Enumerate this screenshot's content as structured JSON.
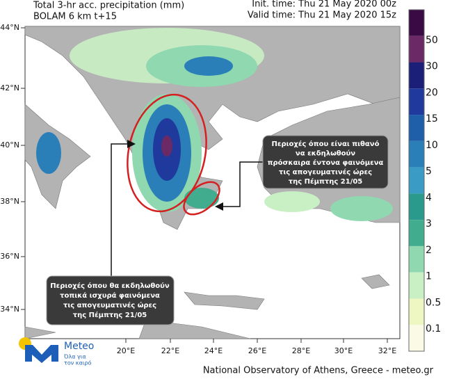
{
  "header": {
    "title": "Total 3-hr acc. precipitation (mm)",
    "model": "BOLAM 6 km t+15",
    "init_time": "Init. time: Thu 21 May 2020 00z",
    "valid_time": "Valid time: Thu 21 May 2020 15z"
  },
  "map": {
    "lat_labels": [
      "44°N",
      "42°N",
      "40°N",
      "38°N",
      "36°N",
      "34°N"
    ],
    "lon_labels": [
      "20°E",
      "22°E",
      "24°E",
      "26°E",
      "28°E",
      "30°E",
      "32°E"
    ]
  },
  "legend": {
    "labels": [
      "50",
      "30",
      "20",
      "15",
      "10",
      "5",
      "4",
      "3",
      "2",
      "1",
      "0.5",
      "0.1"
    ],
    "colors": [
      "#3a0a45",
      "#6b2a66",
      "#1b1f78",
      "#1f3a9c",
      "#1f5ea8",
      "#2a7fb8",
      "#3a9cc4",
      "#2a9a8c",
      "#42ad8e",
      "#8fd8b0",
      "#c9efc4",
      "#eef7c2",
      "#fafae6"
    ]
  },
  "annotations": {
    "upper_box": [
      "Περιοχές όπου είναι πιθανό",
      "να εκδηλωθούν",
      "πρόσκαιρα έντονα φαινόμενα",
      "τις απογευματινές ώρες",
      "της Πέμπτης  21/05"
    ],
    "lower_box": [
      "Περιοχές όπου θα εκδηλωθούν",
      "τοπικά ισχυρά φαινόμενα",
      "τις απογευματινές ώρες",
      "της Πέμπτης  21/05"
    ]
  },
  "footer": {
    "logo_name": "Meteo",
    "logo_slogan": [
      "Όλα για",
      "τον καιρό"
    ],
    "credit": "National Observatory of Athens, Greece - meteo.gr"
  }
}
